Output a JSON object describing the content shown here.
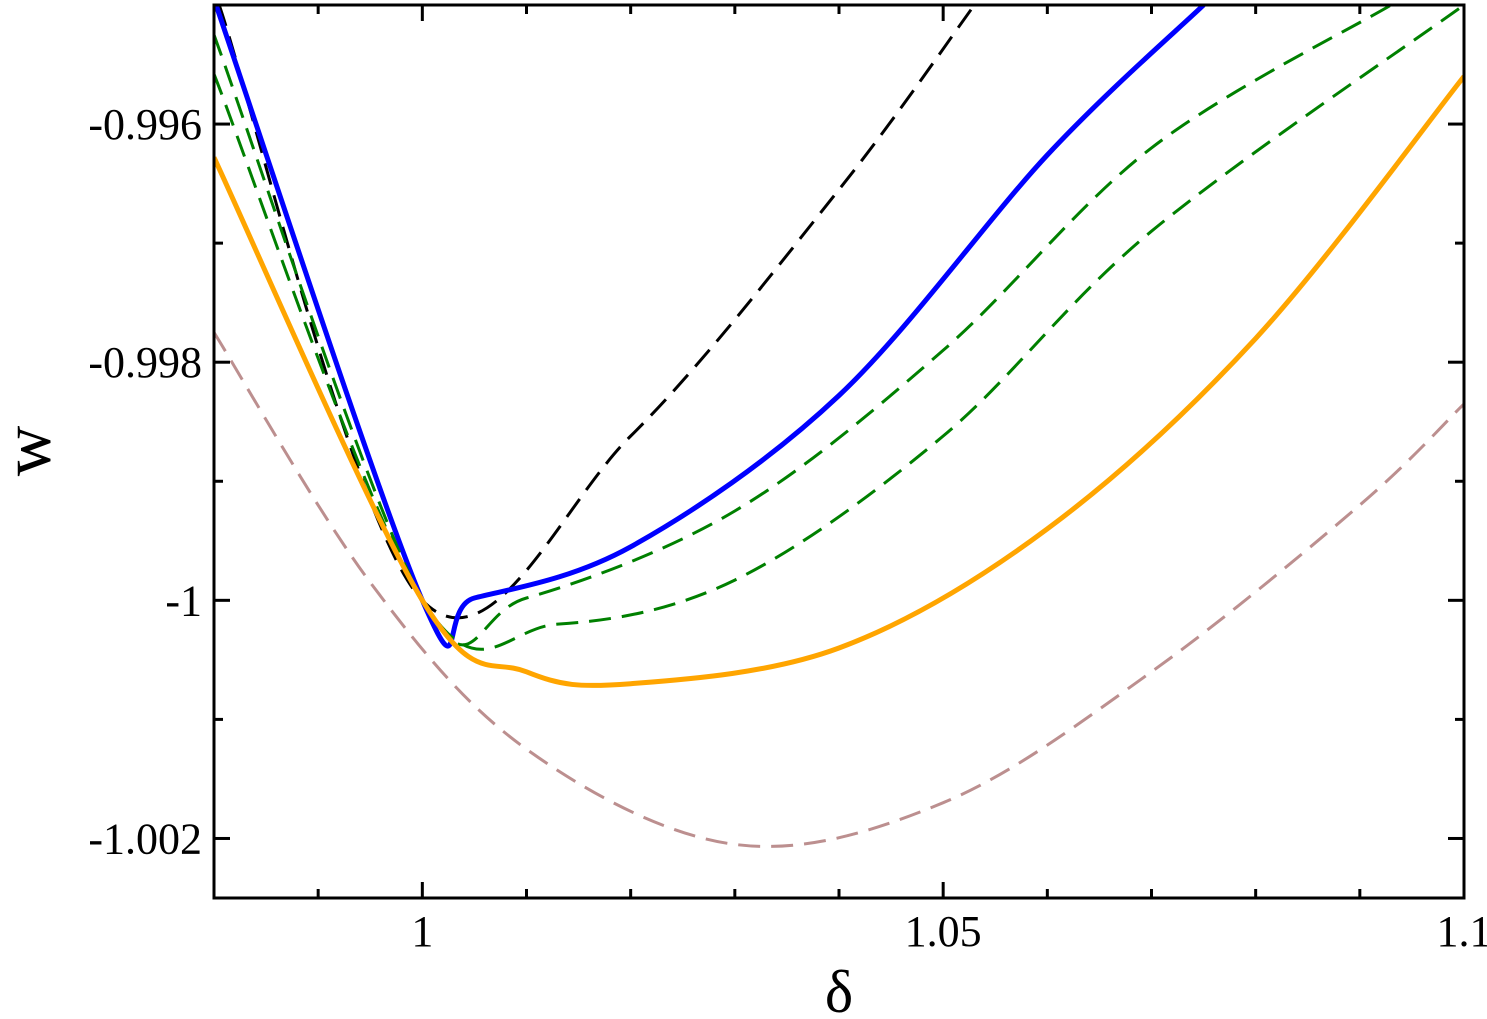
{
  "chart_data": {
    "type": "line",
    "xlabel": "δ",
    "ylabel": "w",
    "xlim": [
      0.98,
      1.1
    ],
    "ylim": [
      -1.0025,
      -0.995
    ],
    "x_ticks": [
      {
        "value": 1,
        "label": "1"
      },
      {
        "value": 1.05,
        "label": "1.05"
      },
      {
        "value": 1.1,
        "label": "1.1"
      }
    ],
    "y_ticks": [
      {
        "value": -0.996,
        "label": "-0.996"
      },
      {
        "value": -0.998,
        "label": "-0.998"
      },
      {
        "value": -1,
        "label": "-1"
      },
      {
        "value": -1.002,
        "label": "-1.002"
      }
    ],
    "grid": false,
    "series": [
      {
        "color": "#000000",
        "dash": true,
        "points": [
          [
            0.9805,
            -0.995
          ],
          [
            1.0,
            -1.0
          ],
          [
            1.02,
            -0.99862
          ],
          [
            1.04,
            -0.99655
          ],
          [
            1.053,
            -0.995
          ]
        ]
      },
      {
        "color": "#0000ff",
        "dash": false,
        "points": [
          [
            0.98,
            -0.99495
          ],
          [
            1.0,
            -1.0
          ],
          [
            1.005,
            -0.99998
          ],
          [
            1.02,
            -0.99955
          ],
          [
            1.04,
            -0.99828
          ],
          [
            1.06,
            -0.99626
          ],
          [
            1.075,
            -0.995
          ]
        ]
      },
      {
        "color": "#008000",
        "dash": true,
        "points": [
          [
            0.98,
            -0.99525
          ],
          [
            1.0,
            -1.0
          ],
          [
            1.01,
            -0.99998
          ],
          [
            1.03,
            -0.99925
          ],
          [
            1.05,
            -0.9979
          ],
          [
            1.07,
            -0.9962
          ],
          [
            1.093,
            -0.995
          ]
        ]
      },
      {
        "color": "#008000",
        "dash": true,
        "points": [
          [
            0.98,
            -0.99558
          ],
          [
            1.0,
            -1.0
          ],
          [
            1.013,
            -1.0002
          ],
          [
            1.03,
            -0.99983
          ],
          [
            1.05,
            -0.99862
          ],
          [
            1.07,
            -0.9969
          ],
          [
            1.1,
            -0.995
          ]
        ]
      },
      {
        "color": "#ffa500",
        "dash": false,
        "points": [
          [
            0.98,
            -0.99628
          ],
          [
            1.0,
            -1.0
          ],
          [
            1.01,
            -1.0006
          ],
          [
            1.02,
            -1.0007
          ],
          [
            1.04,
            -1.0004
          ],
          [
            1.06,
            -0.9994
          ],
          [
            1.08,
            -0.9978
          ],
          [
            1.1,
            -0.9956
          ]
        ]
      },
      {
        "color": "#bc8f8f",
        "dash": true,
        "points": [
          [
            0.98,
            -0.99775
          ],
          [
            0.995,
            -0.99985
          ],
          [
            1.01,
            -1.00125
          ],
          [
            1.03,
            -1.00205
          ],
          [
            1.05,
            -1.0017
          ],
          [
            1.07,
            -1.0006
          ],
          [
            1.09,
            -0.9992
          ],
          [
            1.1,
            -0.99835
          ]
        ]
      }
    ]
  }
}
